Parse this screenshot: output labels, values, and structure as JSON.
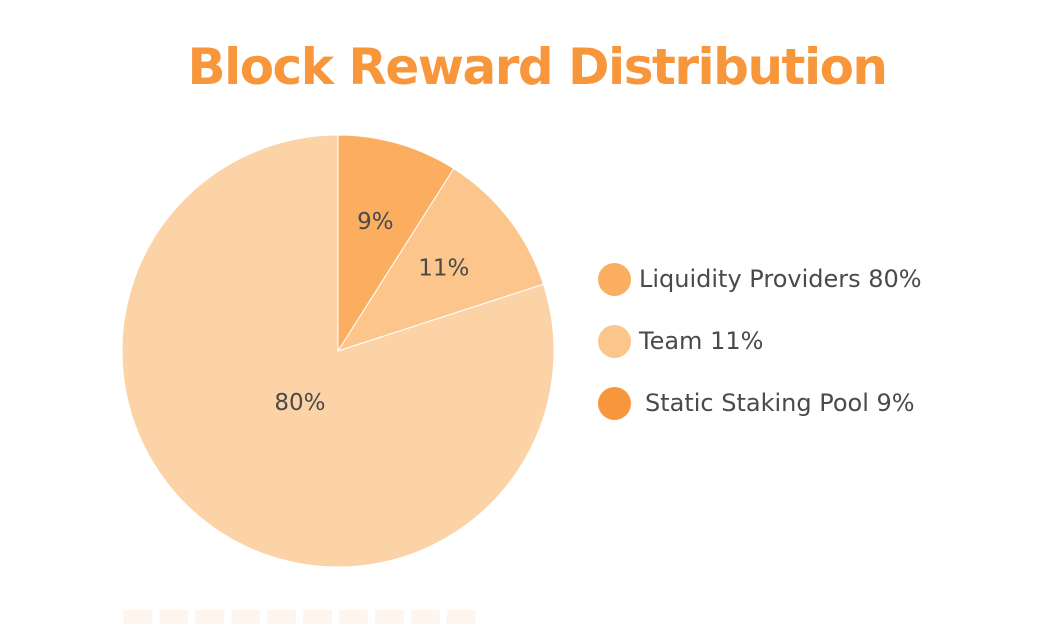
{
  "chart_data": {
    "type": "pie",
    "title": "Block Reward Distribution",
    "slices": [
      {
        "label": "Static Staking Pool",
        "value": 9,
        "display": "9%",
        "color": "#fbae5f"
      },
      {
        "label": "Team",
        "value": 11,
        "display": "11%",
        "color": "#fbc58b"
      },
      {
        "label": "Liquidity Providers",
        "value": 80,
        "display": "80%",
        "color": "#fcd3a6"
      }
    ],
    "legend": {
      "placement": "right",
      "entries": [
        {
          "text": "Liquidity Providers 80%",
          "color": "#fbae5f"
        },
        {
          "text": "Team 11%",
          "color": "#fbc58b"
        },
        {
          "text": "Static Staking Pool 9%",
          "color": "#f7963a"
        }
      ]
    }
  }
}
